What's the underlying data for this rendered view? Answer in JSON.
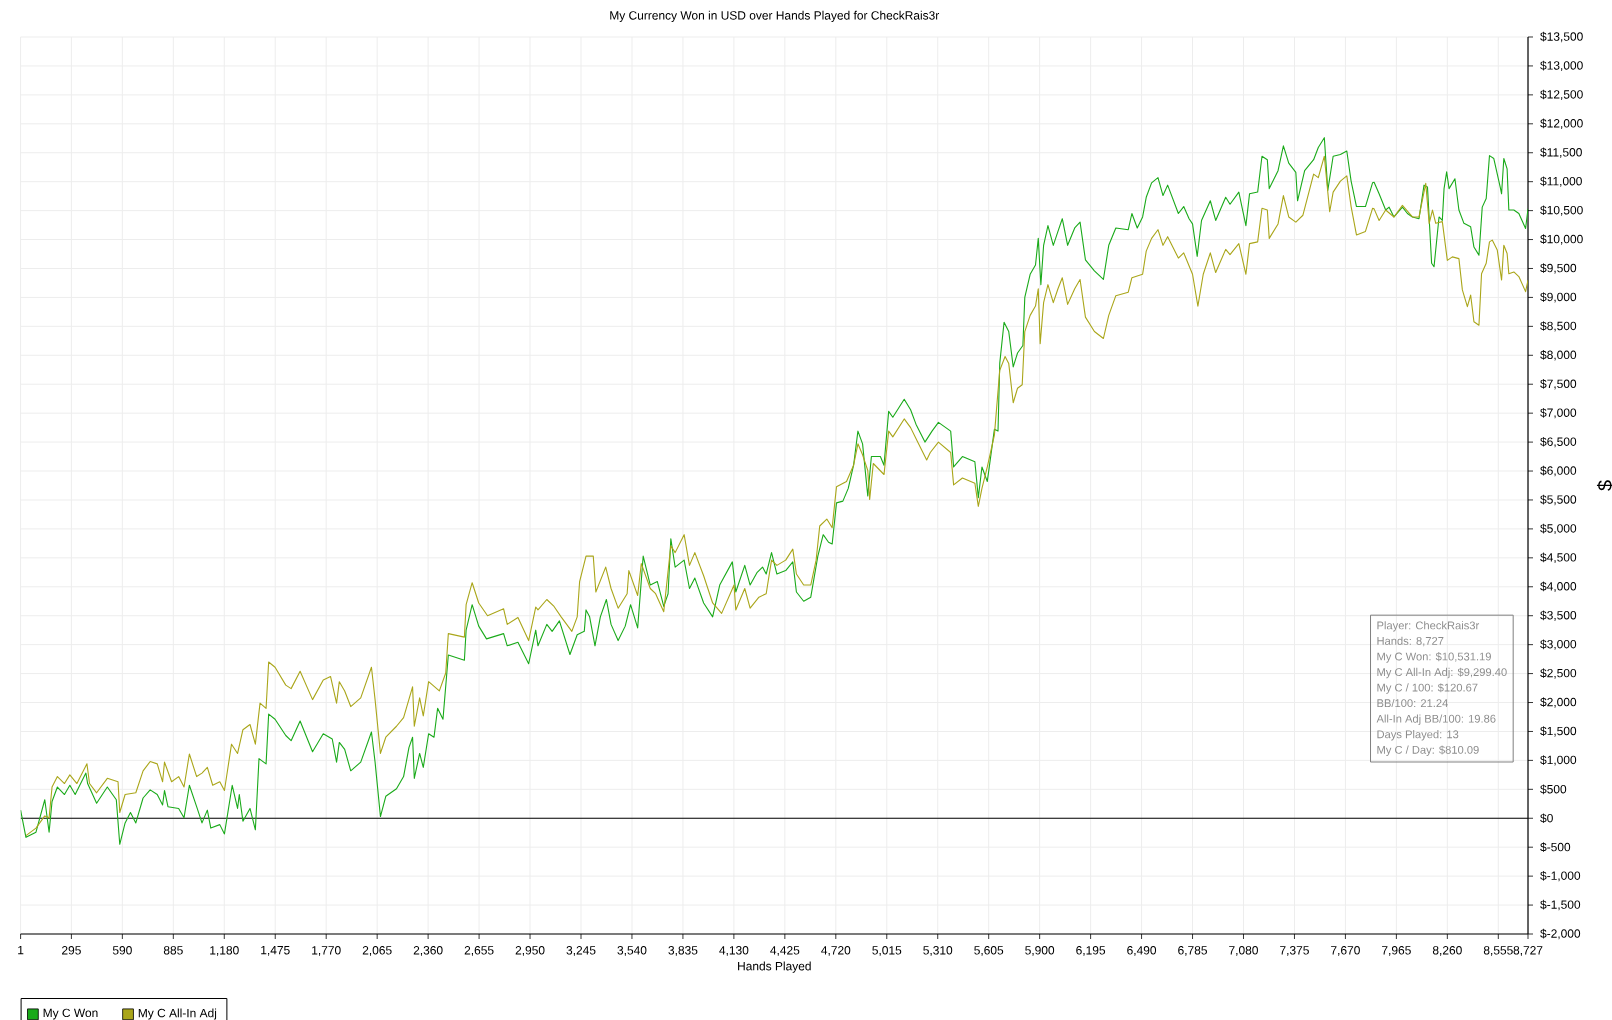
{
  "chart_data": {
    "type": "line",
    "title": "My Currency Won in USD over Hands Played for CheckRais3r",
    "xlabel": "Hands Played",
    "ylabel": "$",
    "xlim": [
      1,
      8727
    ],
    "ylim": [
      -2000,
      13500
    ],
    "xticks": [
      1,
      295,
      590,
      885,
      {
        "value": 1180,
        "label": "1,180"
      },
      {
        "value": 1475,
        "label": "1,475"
      },
      {
        "value": 1770,
        "label": "1,770"
      },
      {
        "value": 2065,
        "label": "2,065"
      },
      {
        "value": 2360,
        "label": "2,360"
      },
      {
        "value": 2655,
        "label": "2,655"
      },
      {
        "value": 2950,
        "label": "2,950"
      },
      {
        "value": 3245,
        "label": "3,245"
      },
      {
        "value": 3540,
        "label": "3,540"
      },
      {
        "value": 3835,
        "label": "3,835"
      },
      {
        "value": 4130,
        "label": "4,130"
      },
      {
        "value": 4425,
        "label": "4,425"
      },
      {
        "value": 4720,
        "label": "4,720"
      },
      {
        "value": 5015,
        "label": "5,015"
      },
      {
        "value": 5310,
        "label": "5,310"
      },
      {
        "value": 5605,
        "label": "5,605"
      },
      {
        "value": 5900,
        "label": "5,900"
      },
      {
        "value": 6195,
        "label": "6,195"
      },
      {
        "value": 6490,
        "label": "6,490"
      },
      {
        "value": 6785,
        "label": "6,785"
      },
      {
        "value": 7080,
        "label": "7,080"
      },
      {
        "value": 7375,
        "label": "7,375"
      },
      {
        "value": 7670,
        "label": "7,670"
      },
      {
        "value": 7965,
        "label": "7,965"
      },
      {
        "value": 8260,
        "label": "8,260"
      },
      {
        "value": 8555,
        "label": "8,555"
      },
      {
        "value": 8727,
        "label": "8,727"
      }
    ],
    "yticks": [
      {
        "value": -2000,
        "label": "$-2,000"
      },
      {
        "value": -1500,
        "label": "$-1,500"
      },
      {
        "value": -1000,
        "label": "$-1,000"
      },
      {
        "value": -500,
        "label": "$-500"
      },
      {
        "value": 0,
        "label": "$0"
      },
      {
        "value": 500,
        "label": "$500"
      },
      {
        "value": 1000,
        "label": "$1,000"
      },
      {
        "value": 1500,
        "label": "$1,500"
      },
      {
        "value": 2000,
        "label": "$2,000"
      },
      {
        "value": 2500,
        "label": "$2,500"
      },
      {
        "value": 3000,
        "label": "$3,000"
      },
      {
        "value": 3500,
        "label": "$3,500"
      },
      {
        "value": 4000,
        "label": "$4,000"
      },
      {
        "value": 4500,
        "label": "$4,500"
      },
      {
        "value": 5000,
        "label": "$5,000"
      },
      {
        "value": 5500,
        "label": "$5,500"
      },
      {
        "value": 6000,
        "label": "$6,000"
      },
      {
        "value": 6500,
        "label": "$6,500"
      },
      {
        "value": 7000,
        "label": "$7,000"
      },
      {
        "value": 7500,
        "label": "$7,500"
      },
      {
        "value": 8000,
        "label": "$8,000"
      },
      {
        "value": 8500,
        "label": "$8,500"
      },
      {
        "value": 9000,
        "label": "$9,000"
      },
      {
        "value": 9500,
        "label": "$9,500"
      },
      {
        "value": 10000,
        "label": "$10,000"
      },
      {
        "value": 10500,
        "label": "$10,500"
      },
      {
        "value": 11000,
        "label": "$11,000"
      },
      {
        "value": 11500,
        "label": "$11,500"
      },
      {
        "value": 12000,
        "label": "$12,000"
      },
      {
        "value": 12500,
        "label": "$12,500"
      },
      {
        "value": 13000,
        "label": "$13,000"
      },
      {
        "value": 13500,
        "label": "$13,500"
      }
    ],
    "grid": true,
    "legend": "bottom left",
    "ref_lines": [
      {
        "axis": "y",
        "value": 0,
        "color": "#000000"
      }
    ],
    "annotations": [
      "Player: CheckRais3r",
      "Hands: 8,727",
      "My C Won: $10,531.19",
      "My C All-In Adj: $9,299.40",
      "My C / 100: $120.67",
      "BB/100: 21.24",
      "All-In Adj BB/100: 19.86",
      "Days Played: 13",
      "My C / Day: $810.09"
    ],
    "series": [
      {
        "name": "My C Won",
        "color": "#1aaa1a",
        "x": [
          1,
          32,
          90,
          141,
          166,
          183,
          214,
          255,
          286,
          317,
          379,
          389,
          441,
          503,
          555,
          575,
          606,
          637,
          668,
          710,
          751,
          792,
          823,
          834,
          854,
          916,
          947,
          978,
          1020,
          1051,
          1082,
          1102,
          1154,
          1181,
          1226,
          1257,
          1267,
          1288,
          1329,
          1360,
          1381,
          1422,
          1437,
          1474,
          1536,
          1567,
          1619,
          1691,
          1753,
          1805,
          1830,
          1846,
          1877,
          1912,
          1970,
          2032,
          2053,
          2084,
          2115,
          2177,
          2218,
          2249,
          2270,
          2280,
          2311,
          2332,
          2363,
          2394,
          2415,
          2446,
          2477,
          2570,
          2580,
          2615,
          2653,
          2698,
          2797,
          2818,
          2880,
          2942,
          2983,
          2996,
          3047,
          3078,
          3120,
          3181,
          3223,
          3264,
          3274,
          3295,
          3326,
          3357,
          3392,
          3419,
          3460,
          3501,
          3532,
          3573,
          3605,
          3646,
          3687,
          3724,
          3749,
          3765,
          3790,
          3842,
          3873,
          3904,
          3955,
          4007,
          4048,
          4121,
          4141,
          4193,
          4224,
          4265,
          4296,
          4317,
          4348,
          4379,
          4430,
          4471,
          4492,
          4534,
          4575,
          4616,
          4647,
          4678,
          4699,
          4724,
          4761,
          4792,
          4823,
          4848,
          4875,
          4905,
          4926,
          4978,
          4999,
          5026,
          5050,
          5116,
          5153,
          5184,
          5236,
          5277,
          5314,
          5385,
          5402,
          5453,
          5525,
          5545,
          5566,
          5597,
          5638,
          5659,
          5669,
          5694,
          5721,
          5747,
          5772,
          5803,
          5814,
          5845,
          5876,
          5892,
          5907,
          5923,
          5948,
          5979,
          6006,
          6031,
          6062,
          6103,
          6134,
          6165,
          6217,
          6269,
          6300,
          6341,
          6413,
          6434,
          6465,
          6496,
          6517,
          6548,
          6585,
          6614,
          6641,
          6703,
          6734,
          6765,
          6785,
          6812,
          6837,
          6888,
          6919,
          6977,
          7002,
          7053,
          7094,
          7115,
          7162,
          7187,
          7218,
          7229,
          7280,
          7311,
          7342,
          7383,
          7393,
          7434,
          7486,
          7513,
          7548,
          7568,
          7599,
          7641,
          7678,
          7703,
          7734,
          7786,
          7827,
          7836,
          7865,
          7903,
          7923,
          7951,
          8000,
          8029,
          8058,
          8096,
          8125,
          8145,
          8169,
          8183,
          8212,
          8231,
          8241,
          8256,
          8270,
          8304,
          8327,
          8356,
          8395,
          8414,
          8443,
          8462,
          8485,
          8504,
          8529,
          8568,
          8574,
          8587,
          8606,
          8616,
          8645,
          8674,
          8713,
          8727
        ],
        "values": [
          140,
          -330,
          -240,
          320,
          -240,
          290,
          540,
          410,
          570,
          410,
          780,
          600,
          260,
          540,
          320,
          -450,
          -80,
          100,
          -80,
          350,
          490,
          410,
          230,
          480,
          200,
          170,
          10,
          570,
          200,
          -80,
          140,
          -170,
          -110,
          -270,
          570,
          170,
          410,
          -50,
          170,
          -200,
          1030,
          940,
          1800,
          1710,
          1430,
          1340,
          1680,
          1150,
          1460,
          1370,
          970,
          1310,
          1190,
          820,
          970,
          1490,
          970,
          30,
          380,
          510,
          720,
          1220,
          1400,
          690,
          1120,
          880,
          1460,
          1400,
          1900,
          1710,
          2820,
          2730,
          3250,
          3690,
          3320,
          3100,
          3190,
          2980,
          3040,
          2670,
          3250,
          2980,
          3350,
          3230,
          3410,
          2830,
          3170,
          3230,
          3600,
          3480,
          2980,
          3480,
          3780,
          3350,
          3070,
          3320,
          3690,
          3290,
          4530,
          4030,
          4090,
          3660,
          3880,
          4830,
          4340,
          4460,
          3970,
          4150,
          3720,
          3480,
          4030,
          4430,
          3910,
          4370,
          4030,
          4250,
          4340,
          4220,
          4590,
          4220,
          4280,
          4430,
          3910,
          3750,
          3820,
          4530,
          4900,
          4770,
          4740,
          5450,
          5480,
          5700,
          6100,
          6690,
          6470,
          5570,
          6250,
          6250,
          6100,
          7030,
          6930,
          7240,
          7060,
          6810,
          6500,
          6690,
          6840,
          6690,
          6070,
          6250,
          6160,
          5540,
          6070,
          5820,
          6720,
          6690,
          7860,
          8570,
          8410,
          7800,
          8040,
          8170,
          9000,
          9400,
          9560,
          10020,
          9220,
          9900,
          10240,
          9900,
          10140,
          10360,
          9900,
          10200,
          10300,
          9650,
          9460,
          9310,
          9900,
          10200,
          10170,
          10450,
          10200,
          10390,
          10730,
          10980,
          11070,
          10760,
          10940,
          10450,
          10570,
          10360,
          10270,
          9710,
          10330,
          10670,
          10330,
          10730,
          10610,
          10820,
          10240,
          10790,
          10820,
          11440,
          11380,
          10880,
          11190,
          11620,
          11320,
          11160,
          10670,
          11190,
          11380,
          11590,
          11760,
          10850,
          11440,
          11470,
          11530,
          11010,
          10570,
          10570,
          10980,
          10990,
          10790,
          10510,
          10560,
          10390,
          10560,
          10450,
          10390,
          10360,
          10940,
          10910,
          9590,
          9530,
          10390,
          10330,
          10880,
          11170,
          10880,
          11050,
          10510,
          10280,
          10220,
          9870,
          9730,
          10560,
          10710,
          11450,
          11400,
          10880,
          10790,
          11400,
          11220,
          10510,
          10510,
          10450,
          10190,
          10530
        ]
      },
      {
        "name": "My C All-In Adj",
        "color": "#aaa61a",
        "x": [
          32,
          90,
          141,
          166,
          183,
          214,
          255,
          286,
          327,
          385,
          400,
          441,
          503,
          565,
          575,
          606,
          668,
          710,
          751,
          792,
          823,
          834,
          875,
          916,
          947,
          978,
          1020,
          1051,
          1082,
          1113,
          1154,
          1181,
          1222,
          1257,
          1288,
          1329,
          1360,
          1387,
          1422,
          1437,
          1474,
          1536,
          1567,
          1619,
          1691,
          1753,
          1795,
          1830,
          1846,
          1877,
          1912,
          1970,
          2032,
          2053,
          2084,
          2115,
          2177,
          2218,
          2270,
          2280,
          2311,
          2332,
          2363,
          2425,
          2462,
          2477,
          2570,
          2580,
          2615,
          2653,
          2704,
          2797,
          2818,
          2880,
          2942,
          2983,
          2996,
          3047,
          3089,
          3130,
          3192,
          3223,
          3237,
          3274,
          3316,
          3331,
          3388,
          3419,
          3460,
          3512,
          3522,
          3573,
          3594,
          3646,
          3677,
          3724,
          3765,
          3790,
          3842,
          3873,
          3904,
          3955,
          4007,
          4059,
          4131,
          4141,
          4193,
          4224,
          4275,
          4317,
          4348,
          4379,
          4430,
          4471,
          4492,
          4534,
          4575,
          4606,
          4627,
          4668,
          4699,
          4724,
          4782,
          4823,
          4848,
          4875,
          4905,
          4916,
          4937,
          4999,
          5026,
          5050,
          5116,
          5153,
          5194,
          5246,
          5267,
          5314,
          5385,
          5402,
          5453,
          5525,
          5545,
          5566,
          5597,
          5638,
          5669,
          5700,
          5721,
          5747,
          5772,
          5799,
          5814,
          5845,
          5876,
          5892,
          5903,
          5923,
          5948,
          5979,
          6006,
          6031,
          6062,
          6103,
          6134,
          6165,
          6217,
          6269,
          6300,
          6341,
          6413,
          6434,
          6496,
          6517,
          6548,
          6585,
          6614,
          6641,
          6703,
          6734,
          6785,
          6816,
          6847,
          6888,
          6919,
          6977,
          7002,
          7053,
          7094,
          7115,
          7162,
          7187,
          7218,
          7229,
          7280,
          7311,
          7342,
          7383,
          7424,
          7486,
          7513,
          7548,
          7579,
          7599,
          7641,
          7678,
          7703,
          7734,
          7786,
          7827,
          7836,
          7865,
          7903,
          7951,
          8000,
          8058,
          8096,
          8135,
          8155,
          8174,
          8193,
          8231,
          8260,
          8289,
          8327,
          8347,
          8376,
          8395,
          8414,
          8443,
          8458,
          8485,
          8504,
          8520,
          8549,
          8574,
          8587,
          8606,
          8616,
          8645,
          8674,
          8713,
          8727
        ],
        "values": [
          -300,
          -170,
          40,
          10,
          540,
          720,
          600,
          750,
          600,
          940,
          600,
          440,
          690,
          630,
          100,
          410,
          440,
          820,
          980,
          940,
          630,
          970,
          630,
          720,
          540,
          1110,
          720,
          780,
          880,
          570,
          630,
          480,
          1280,
          1120,
          1530,
          1620,
          1280,
          1990,
          1900,
          2700,
          2610,
          2300,
          2240,
          2540,
          2050,
          2390,
          2450,
          1990,
          2360,
          2200,
          1930,
          2080,
          2610,
          2050,
          1120,
          1400,
          1590,
          1740,
          2270,
          1590,
          2080,
          1770,
          2360,
          2200,
          2510,
          3190,
          3130,
          3690,
          4070,
          3720,
          3500,
          3620,
          3350,
          3470,
          3070,
          3650,
          3600,
          3780,
          3660,
          3480,
          3230,
          3480,
          4090,
          4530,
          4530,
          3910,
          4340,
          3970,
          3630,
          3880,
          4280,
          3850,
          4400,
          3970,
          3880,
          3570,
          4710,
          4590,
          4900,
          4370,
          4590,
          4190,
          3720,
          3540,
          4030,
          3600,
          3970,
          3630,
          3820,
          3880,
          4460,
          4370,
          4460,
          4650,
          4220,
          4030,
          4030,
          4460,
          5050,
          5170,
          5020,
          5730,
          5820,
          6100,
          6470,
          6280,
          6010,
          5510,
          6130,
          5940,
          6690,
          6590,
          6900,
          6750,
          6500,
          6190,
          6320,
          6500,
          6320,
          5760,
          5880,
          5790,
          5390,
          5700,
          6070,
          6620,
          7740,
          7980,
          7860,
          7180,
          7430,
          7490,
          8410,
          8690,
          8850,
          9150,
          8200,
          8910,
          9220,
          8910,
          9150,
          9340,
          8880,
          9150,
          9310,
          8660,
          8410,
          8290,
          8690,
          9030,
          9090,
          9340,
          9400,
          9800,
          10020,
          10170,
          9900,
          10050,
          9680,
          9770,
          9400,
          8850,
          9400,
          9770,
          9430,
          9830,
          9740,
          9930,
          9400,
          9930,
          9960,
          10540,
          10510,
          10020,
          10270,
          10760,
          10390,
          10300,
          10420,
          11130,
          11070,
          11440,
          10480,
          10820,
          11010,
          11100,
          10570,
          10080,
          10140,
          10540,
          10530,
          10330,
          10510,
          10390,
          10590,
          10390,
          10390,
          10970,
          10280,
          10510,
          10280,
          10310,
          9640,
          9700,
          9670,
          9130,
          8840,
          9040,
          8580,
          8520,
          9410,
          9590,
          9960,
          9990,
          9820,
          9300,
          9900,
          9760,
          9410,
          9440,
          9360,
          9100,
          9300
        ]
      }
    ]
  }
}
